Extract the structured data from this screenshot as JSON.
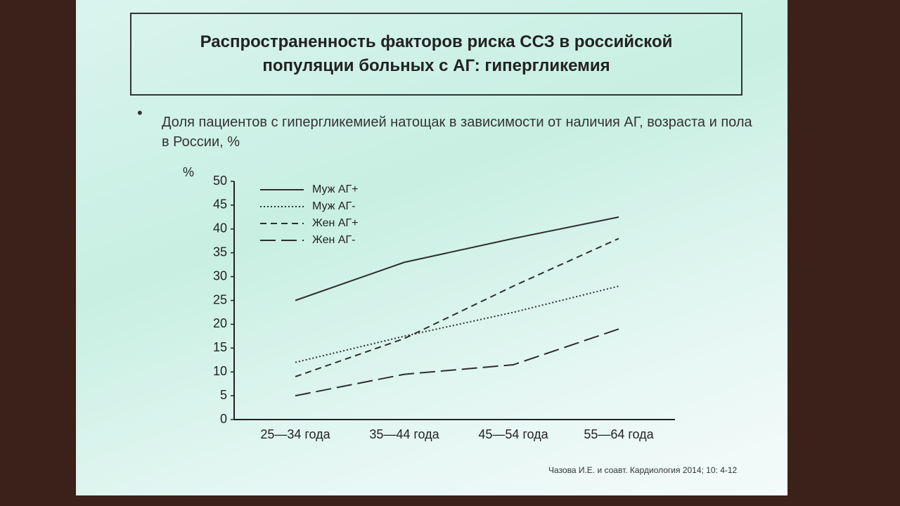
{
  "chart_data": {
    "type": "line",
    "title": "Распространенность факторов риска ССЗ в российской популяции больных с АГ: гипергликемия",
    "subtitle": "Доля пациентов с гипергликемией натощак в зависимости от наличия АГ, возраста и пола в России, %",
    "y_label": "%",
    "categories": [
      "25—34 года",
      "35—44 года",
      "45—54 года",
      "55—64 года"
    ],
    "series": [
      {
        "name": "Муж АГ+",
        "color": "#2e2e2e",
        "dash": "solid",
        "values": [
          25,
          33,
          38,
          42.5
        ]
      },
      {
        "name": "Муж АГ-",
        "color": "#2e2e2e",
        "dash": "dotted",
        "values": [
          12,
          17.5,
          22.5,
          28
        ]
      },
      {
        "name": "Жен АГ+",
        "color": "#2e2e2e",
        "dash": "dashed",
        "values": [
          9,
          17,
          28,
          38
        ]
      },
      {
        "name": "Жен АГ-",
        "color": "#2e2e2e",
        "dash": "longdash",
        "values": [
          5,
          9.5,
          11.5,
          19
        ]
      }
    ],
    "ylim": [
      0,
      50
    ],
    "yticks": [
      0,
      5,
      10,
      15,
      20,
      25,
      30,
      35,
      40,
      45,
      50
    ],
    "source": "Чазова И.Е. и соавт. Кардиология 2014; 10: 4-12"
  }
}
